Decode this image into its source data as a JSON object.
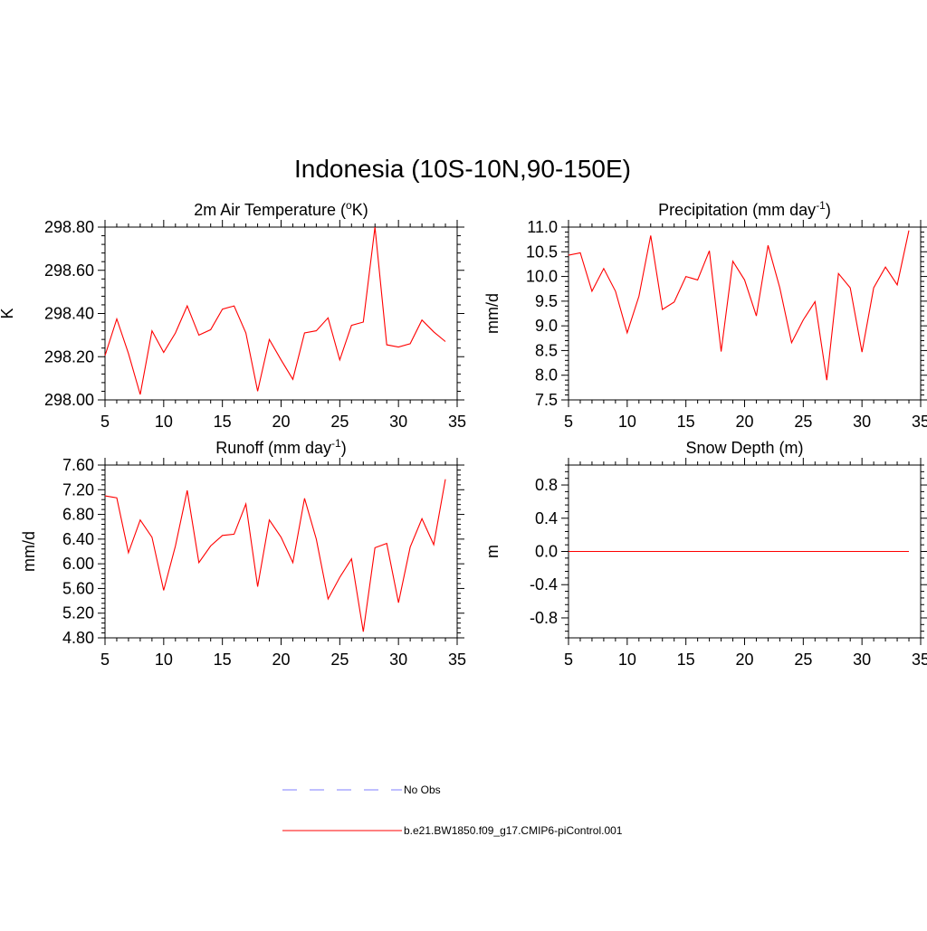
{
  "title": "Indonesia (10S-10N,90-150E)",
  "colors": {
    "series": "#ff0000",
    "obs": "#9999ff",
    "axis": "#000000"
  },
  "legend": {
    "obs_label": "No Obs",
    "model_label": "b.e21.BW1850.f09_g17.CMIP6-piControl.001"
  },
  "chart_data": [
    {
      "id": "temp",
      "type": "line",
      "title": "2m Air Temperature (°K)",
      "title_parts": [
        "2m Air Temperature (",
        "o",
        "K)"
      ],
      "title_sup_index": 1,
      "ylabel": "K",
      "xlim": [
        5,
        35
      ],
      "ylim": [
        298.0,
        298.8
      ],
      "xticks": [
        5,
        10,
        15,
        20,
        25,
        30,
        35
      ],
      "yticks": [
        298.0,
        298.2,
        298.4,
        298.6,
        298.8
      ],
      "ytick_labels": [
        "298.00",
        "298.20",
        "298.40",
        "298.60",
        "298.80"
      ],
      "series": [
        {
          "name": "b.e21.BW1850.f09_g17.CMIP6-piControl.001",
          "x": [
            5,
            6,
            7,
            8,
            9,
            10,
            11,
            12,
            13,
            14,
            15,
            16,
            17,
            18,
            19,
            20,
            21,
            22,
            23,
            24,
            25,
            26,
            27,
            28,
            29,
            30,
            31,
            32,
            33,
            34
          ],
          "values": [
            298.205,
            298.375,
            298.215,
            298.025,
            298.32,
            298.22,
            298.31,
            298.435,
            298.3,
            298.325,
            298.42,
            298.435,
            298.31,
            298.04,
            298.28,
            298.185,
            298.095,
            298.31,
            298.32,
            298.38,
            298.185,
            298.345,
            298.36,
            298.8,
            298.255,
            298.245,
            298.26,
            298.37,
            298.315,
            298.27
          ]
        }
      ]
    },
    {
      "id": "precip",
      "type": "line",
      "title": "Precipitation (mm day-1)",
      "title_parts": [
        "Precipitation (mm day",
        "-1",
        ")"
      ],
      "title_sup_index": 1,
      "ylabel": "mm/d",
      "xlim": [
        5,
        35
      ],
      "ylim": [
        7.5,
        11.0
      ],
      "xticks": [
        5,
        10,
        15,
        20,
        25,
        30,
        35
      ],
      "yticks": [
        7.5,
        8.0,
        8.5,
        9.0,
        9.5,
        10.0,
        10.5,
        11.0
      ],
      "ytick_labels": [
        "7.5",
        "8.0",
        "8.5",
        "9.0",
        "9.5",
        "10.0",
        "10.5",
        "11.0"
      ],
      "series": [
        {
          "name": "b.e21.BW1850.f09_g17.CMIP6-piControl.001",
          "x": [
            5,
            6,
            7,
            8,
            9,
            10,
            11,
            12,
            13,
            14,
            15,
            16,
            17,
            18,
            19,
            20,
            21,
            22,
            23,
            24,
            25,
            26,
            27,
            28,
            29,
            30,
            31,
            32,
            33,
            34
          ],
          "values": [
            10.43,
            10.48,
            9.7,
            10.16,
            9.7,
            8.86,
            9.6,
            10.83,
            9.33,
            9.48,
            10.0,
            9.93,
            10.52,
            8.48,
            10.31,
            9.93,
            9.2,
            10.63,
            9.77,
            8.66,
            9.12,
            9.49,
            7.9,
            10.06,
            9.77,
            8.47,
            9.77,
            10.19,
            9.83,
            10.93
          ]
        }
      ]
    },
    {
      "id": "runoff",
      "type": "line",
      "title": "Runoff (mm day-1)",
      "title_parts": [
        "Runoff (mm day",
        "-1",
        ")"
      ],
      "title_sup_index": 1,
      "ylabel": "mm/d",
      "xlim": [
        5,
        35
      ],
      "ylim": [
        4.8,
        7.6
      ],
      "xticks": [
        5,
        10,
        15,
        20,
        25,
        30,
        35
      ],
      "yticks": [
        4.8,
        5.2,
        5.6,
        6.0,
        6.4,
        6.8,
        7.2,
        7.6
      ],
      "ytick_labels": [
        "4.80",
        "5.20",
        "5.60",
        "6.00",
        "6.40",
        "6.80",
        "7.20",
        "7.60"
      ],
      "series": [
        {
          "name": "b.e21.BW1850.f09_g17.CMIP6-piControl.001",
          "x": [
            5,
            6,
            7,
            8,
            9,
            10,
            11,
            12,
            13,
            14,
            15,
            16,
            17,
            18,
            19,
            20,
            21,
            22,
            23,
            24,
            25,
            26,
            27,
            28,
            29,
            30,
            31,
            32,
            33,
            34
          ],
          "values": [
            7.1,
            7.07,
            6.18,
            6.71,
            6.43,
            5.57,
            6.29,
            7.19,
            6.02,
            6.29,
            6.46,
            6.48,
            6.97,
            5.63,
            6.71,
            6.43,
            6.02,
            7.06,
            6.4,
            5.43,
            5.78,
            6.08,
            4.9,
            6.26,
            6.33,
            5.37,
            6.27,
            6.73,
            6.31,
            7.37
          ]
        }
      ]
    },
    {
      "id": "snow",
      "type": "line",
      "title": "Snow Depth (m)",
      "title_parts": [
        "Snow Depth (m)"
      ],
      "title_sup_index": -1,
      "ylabel": "m",
      "xlim": [
        5,
        35
      ],
      "ylim": [
        -1.04,
        1.04
      ],
      "xticks": [
        5,
        10,
        15,
        20,
        25,
        30,
        35
      ],
      "yticks": [
        -0.8,
        -0.4,
        0.0,
        0.4,
        0.8
      ],
      "ytick_labels": [
        "-0.8",
        "-0.4",
        "0.0",
        "0.4",
        "0.8"
      ],
      "series": [
        {
          "name": "b.e21.BW1850.f09_g17.CMIP6-piControl.001",
          "x": [
            5,
            6,
            7,
            8,
            9,
            10,
            11,
            12,
            13,
            14,
            15,
            16,
            17,
            18,
            19,
            20,
            21,
            22,
            23,
            24,
            25,
            26,
            27,
            28,
            29,
            30,
            31,
            32,
            33,
            34
          ],
          "values": [
            0,
            0,
            0,
            0,
            0,
            0,
            0,
            0,
            0,
            0,
            0,
            0,
            0,
            0,
            0,
            0,
            0,
            0,
            0,
            0,
            0,
            0,
            0,
            0,
            0,
            0,
            0,
            0,
            0,
            0
          ]
        }
      ]
    }
  ]
}
